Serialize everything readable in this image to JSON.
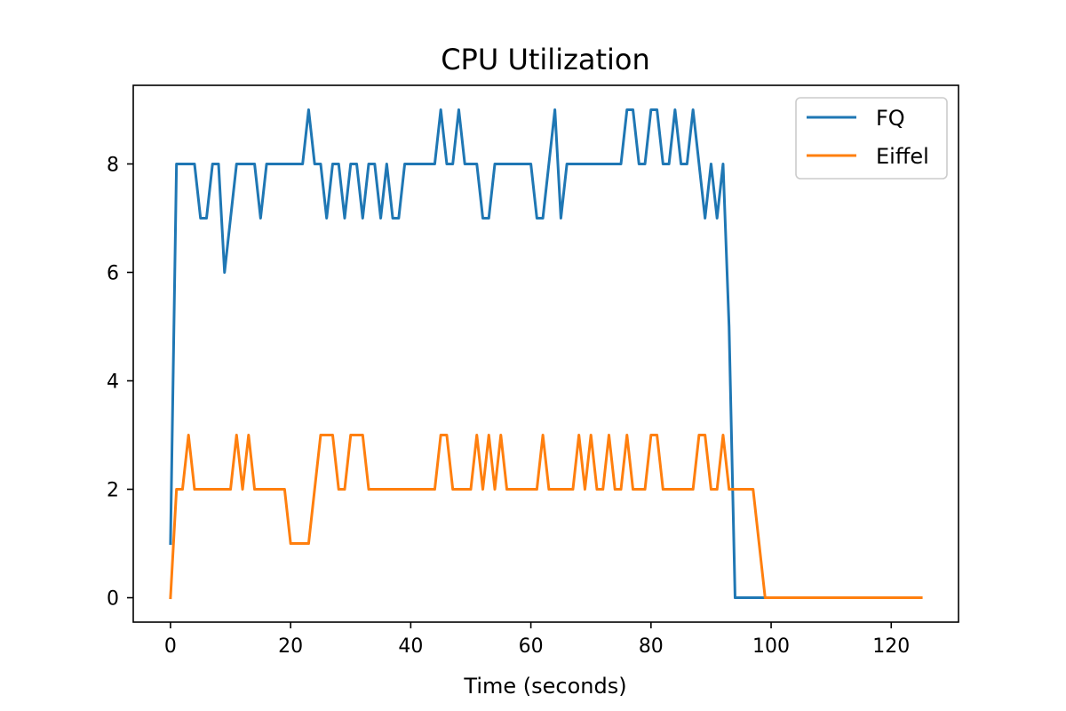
{
  "chart_data": {
    "type": "line",
    "title": "CPU Utilization",
    "xlabel": "Time (seconds)",
    "ylabel": "",
    "xlim": [
      -6.2,
      131.2
    ],
    "ylim": [
      -0.45,
      9.45
    ],
    "xticks": [
      0,
      20,
      40,
      60,
      80,
      100,
      120
    ],
    "yticks": [
      0,
      2,
      4,
      6,
      8
    ],
    "grid": false,
    "legend_position": "top-right",
    "series": [
      {
        "name": "FQ",
        "color": "#1f77b4",
        "x": [
          0,
          1,
          2,
          3,
          4,
          5,
          6,
          7,
          8,
          9,
          10,
          11,
          12,
          13,
          14,
          15,
          16,
          17,
          18,
          19,
          20,
          21,
          22,
          23,
          24,
          25,
          26,
          27,
          28,
          29,
          30,
          31,
          32,
          33,
          34,
          35,
          36,
          37,
          38,
          39,
          40,
          41,
          42,
          43,
          44,
          45,
          46,
          47,
          48,
          49,
          50,
          51,
          52,
          53,
          54,
          55,
          56,
          57,
          58,
          59,
          60,
          61,
          62,
          63,
          64,
          65,
          66,
          67,
          68,
          69,
          70,
          71,
          72,
          73,
          74,
          75,
          76,
          77,
          78,
          79,
          80,
          81,
          82,
          83,
          84,
          85,
          86,
          87,
          88,
          89,
          90,
          91,
          92,
          93,
          94,
          95,
          96,
          97,
          98,
          99,
          100,
          101,
          102,
          103,
          104,
          105,
          106,
          107,
          108,
          109,
          110,
          111,
          112,
          113,
          114,
          115,
          116,
          117,
          118,
          119,
          120,
          121,
          122,
          123
        ],
        "y": [
          1,
          8,
          8,
          8,
          8,
          7,
          7,
          8,
          8,
          6,
          7,
          8,
          8,
          8,
          8,
          7,
          8,
          8,
          8,
          8,
          8,
          8,
          8,
          9,
          8,
          8,
          7,
          8,
          8,
          7,
          8,
          8,
          7,
          8,
          8,
          7,
          8,
          7,
          7,
          8,
          8,
          8,
          8,
          8,
          8,
          9,
          8,
          8,
          9,
          8,
          8,
          8,
          7,
          7,
          8,
          8,
          8,
          8,
          8,
          8,
          8,
          7,
          7,
          8,
          9,
          7,
          8,
          8,
          8,
          8,
          8,
          8,
          8,
          8,
          8,
          8,
          9,
          9,
          8,
          8,
          9,
          9,
          8,
          8,
          9,
          8,
          8,
          9,
          8,
          7,
          8,
          7,
          8,
          5,
          0,
          0,
          0,
          0,
          0,
          0,
          0,
          0,
          0,
          0,
          0,
          0,
          0,
          0,
          0,
          0,
          0,
          0,
          0,
          0,
          0,
          0,
          0,
          0,
          0,
          0,
          0,
          0,
          0,
          0
        ]
      },
      {
        "name": "Eiffel",
        "color": "#ff7f0e",
        "x": [
          0,
          1,
          2,
          3,
          4,
          5,
          6,
          7,
          8,
          9,
          10,
          11,
          12,
          13,
          14,
          15,
          16,
          17,
          18,
          19,
          20,
          21,
          22,
          23,
          24,
          25,
          26,
          27,
          28,
          29,
          30,
          31,
          32,
          33,
          34,
          35,
          36,
          37,
          38,
          39,
          40,
          41,
          42,
          43,
          44,
          45,
          46,
          47,
          48,
          49,
          50,
          51,
          52,
          53,
          54,
          55,
          56,
          57,
          58,
          59,
          60,
          61,
          62,
          63,
          64,
          65,
          66,
          67,
          68,
          69,
          70,
          71,
          72,
          73,
          74,
          75,
          76,
          77,
          78,
          79,
          80,
          81,
          82,
          83,
          84,
          85,
          86,
          87,
          88,
          89,
          90,
          91,
          92,
          93,
          94,
          95,
          96,
          97,
          98,
          99,
          100,
          101,
          102,
          103,
          104,
          105,
          106,
          107,
          108,
          109,
          110,
          111,
          112,
          113,
          114,
          115,
          116,
          117,
          118,
          119,
          120,
          121,
          122,
          123,
          124,
          125
        ],
        "y": [
          0,
          2,
          2,
          3,
          2,
          2,
          2,
          2,
          2,
          2,
          2,
          3,
          2,
          3,
          2,
          2,
          2,
          2,
          2,
          2,
          1,
          1,
          1,
          1,
          2,
          3,
          3,
          3,
          2,
          2,
          3,
          3,
          3,
          2,
          2,
          2,
          2,
          2,
          2,
          2,
          2,
          2,
          2,
          2,
          2,
          3,
          3,
          2,
          2,
          2,
          2,
          3,
          2,
          3,
          2,
          3,
          2,
          2,
          2,
          2,
          2,
          2,
          3,
          2,
          2,
          2,
          2,
          2,
          3,
          2,
          3,
          2,
          2,
          3,
          2,
          2,
          3,
          2,
          2,
          2,
          3,
          3,
          2,
          2,
          2,
          2,
          2,
          2,
          3,
          3,
          2,
          2,
          3,
          2,
          2,
          2,
          2,
          2,
          1,
          0,
          0,
          0,
          0,
          0,
          0,
          0,
          0,
          0,
          0,
          0,
          0,
          0,
          0,
          0,
          0,
          0,
          0,
          0,
          0,
          0,
          0,
          0,
          0,
          0,
          0,
          0
        ]
      }
    ]
  }
}
